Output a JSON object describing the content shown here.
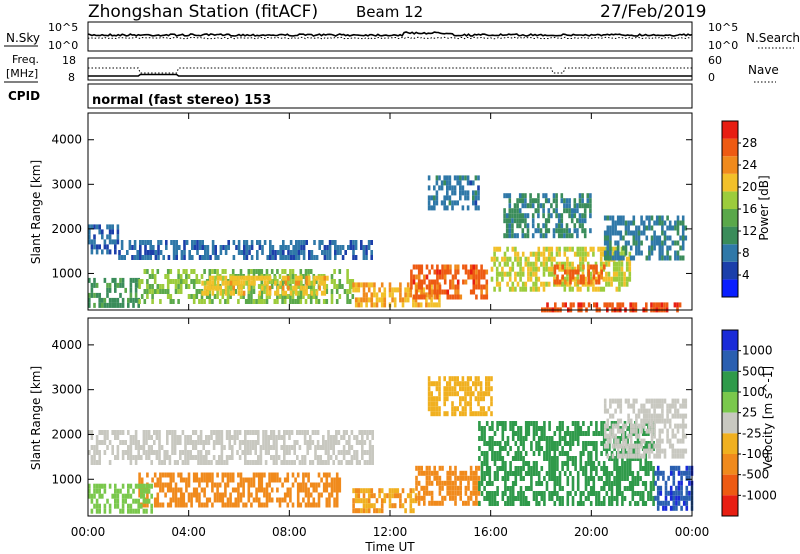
{
  "header": {
    "station": "Zhongshan Station (fitACF)",
    "beam": "Beam 12",
    "date": "27/Feb/2019"
  },
  "strips": {
    "nsky": {
      "label": "N.Sky",
      "ticks": [
        "10^5",
        "10^0"
      ],
      "right_label": "N.Search",
      "right_ticks": [
        "10^5",
        "10^0"
      ]
    },
    "freq": {
      "label_line1": "Freq.",
      "label_line2": "[MHz]",
      "ticks": [
        "18",
        "8"
      ],
      "right_label": "Nave",
      "right_ticks": [
        "60",
        "0"
      ]
    },
    "cpid": {
      "label": "CPID",
      "value": "normal (fast stereo) 153"
    }
  },
  "colors": {
    "power": [
      "#0a1fff",
      "#1b3faa",
      "#2f78a8",
      "#3a8c5a",
      "#5aa84a",
      "#9ccc3c",
      "#f2c02a",
      "#f08a1c",
      "#ee5a12",
      "#e81e12"
    ],
    "velocity": [
      "#1a2bd8",
      "#2a5fb0",
      "#3a8a66",
      "#2f9a4a",
      "#7ac84c",
      "#c8c8c0",
      "#f0b020",
      "#f08a1c",
      "#ee5a12",
      "#e81e12"
    ]
  },
  "chart_data": [
    {
      "type": "heatmap",
      "name": "Power",
      "ylabel": "Slant Range [km]",
      "ylim": [
        180,
        4600
      ],
      "yticks": [
        1000,
        2000,
        3000,
        4000
      ],
      "colorbar": {
        "label": "Power [dB]",
        "ticks": [
          4,
          8,
          12,
          16,
          20,
          24,
          28
        ],
        "range": [
          0,
          32
        ]
      },
      "regions": [
        {
          "t": [
            0.0,
            1.2
          ],
          "r": [
            1500,
            2100
          ],
          "value": 7
        },
        {
          "t": [
            1.2,
            11.3
          ],
          "r": [
            1350,
            1750
          ],
          "value": 7
        },
        {
          "t": [
            0.0,
            2.0
          ],
          "r": [
            300,
            900
          ],
          "value": 12
        },
        {
          "t": [
            2.0,
            10.5
          ],
          "r": [
            400,
            1100
          ],
          "value": 16
        },
        {
          "t": [
            4.5,
            9.5
          ],
          "r": [
            600,
            950
          ],
          "value": 21
        },
        {
          "t": [
            10.5,
            14.0
          ],
          "r": [
            300,
            800
          ],
          "value": 22
        },
        {
          "t": [
            12.8,
            15.8
          ],
          "r": [
            450,
            1200
          ],
          "value": 27
        },
        {
          "t": [
            16.0,
            21.5
          ],
          "r": [
            700,
            1600
          ],
          "value": 19
        },
        {
          "t": [
            18.5,
            20.5
          ],
          "r": [
            800,
            1200
          ],
          "value": 26
        },
        {
          "t": [
            16.5,
            20.0
          ],
          "r": [
            1900,
            2800
          ],
          "value": 10
        },
        {
          "t": [
            20.5,
            23.8
          ],
          "r": [
            1300,
            2300
          ],
          "value": 9
        },
        {
          "t": [
            13.5,
            15.5
          ],
          "r": [
            2500,
            3200
          ],
          "value": 8
        },
        {
          "t": [
            18.0,
            23.5
          ],
          "r": [
            200,
            350
          ],
          "value": 28
        }
      ]
    },
    {
      "type": "heatmap",
      "name": "Velocity",
      "ylabel": "Slant Range [km]",
      "xlabel": "Time UT",
      "xticks": [
        "00:00",
        "04:00",
        "08:00",
        "12:00",
        "16:00",
        "20:00",
        "00:00"
      ],
      "xlim_hours": [
        0,
        24
      ],
      "ylim": [
        180,
        4600
      ],
      "yticks": [
        1000,
        2000,
        3000,
        4000
      ],
      "colorbar": {
        "label": "Velocity [m s^-1]",
        "ticks": [
          "1000",
          "500",
          "100",
          "25",
          "-25",
          "-100",
          "-500",
          "-1000"
        ]
      },
      "regions": [
        {
          "t": [
            0.0,
            11.3
          ],
          "r": [
            1400,
            2100
          ],
          "value": 0
        },
        {
          "t": [
            2.0,
            10.0
          ],
          "r": [
            450,
            1150
          ],
          "value": -300
        },
        {
          "t": [
            0.0,
            2.5
          ],
          "r": [
            300,
            900
          ],
          "value": 60
        },
        {
          "t": [
            10.5,
            13.0
          ],
          "r": [
            300,
            800
          ],
          "value": -100
        },
        {
          "t": [
            13.0,
            15.5
          ],
          "r": [
            500,
            1300
          ],
          "value": -300
        },
        {
          "t": [
            15.5,
            22.5
          ],
          "r": [
            500,
            2300
          ],
          "value": 150
        },
        {
          "t": [
            22.5,
            24.0
          ],
          "r": [
            400,
            1300
          ],
          "value": 900
        },
        {
          "t": [
            20.5,
            23.8
          ],
          "r": [
            1500,
            2800
          ],
          "value": 10
        },
        {
          "t": [
            13.5,
            16.0
          ],
          "r": [
            2500,
            3300
          ],
          "value": -80
        }
      ]
    }
  ]
}
